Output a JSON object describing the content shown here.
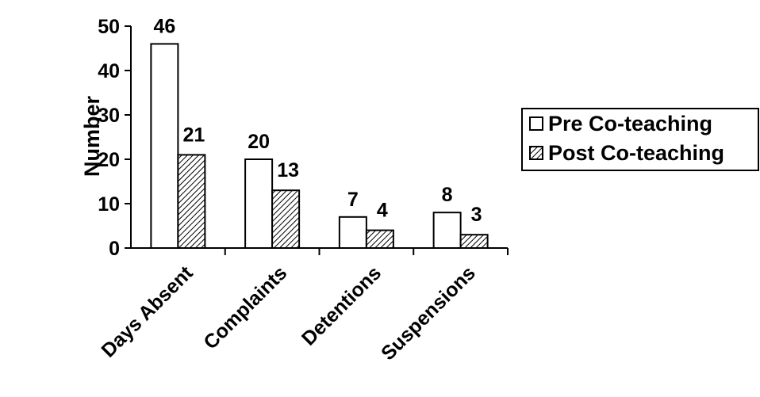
{
  "chart_data": {
    "type": "bar",
    "title": "",
    "xlabel": "",
    "ylabel": "Number",
    "ylim": [
      0,
      50
    ],
    "yticks": [
      0,
      10,
      20,
      30,
      40,
      50
    ],
    "categories": [
      "Days Absent",
      "Complaints",
      "Detentions",
      "Suspensions"
    ],
    "series": [
      {
        "name": "Pre Co-teaching",
        "values": [
          46,
          20,
          7,
          8
        ],
        "fill": "#ffffff",
        "pattern": "none"
      },
      {
        "name": "Post Co-teaching",
        "values": [
          21,
          13,
          4,
          3
        ],
        "fill": "#ffffff",
        "pattern": "diagonal-hatch"
      }
    ],
    "data_labels": true,
    "grid": false,
    "legend_position": "right"
  },
  "colors": {
    "bar_outline": "#000000",
    "hatch": "#000000",
    "background": "#ffffff"
  }
}
